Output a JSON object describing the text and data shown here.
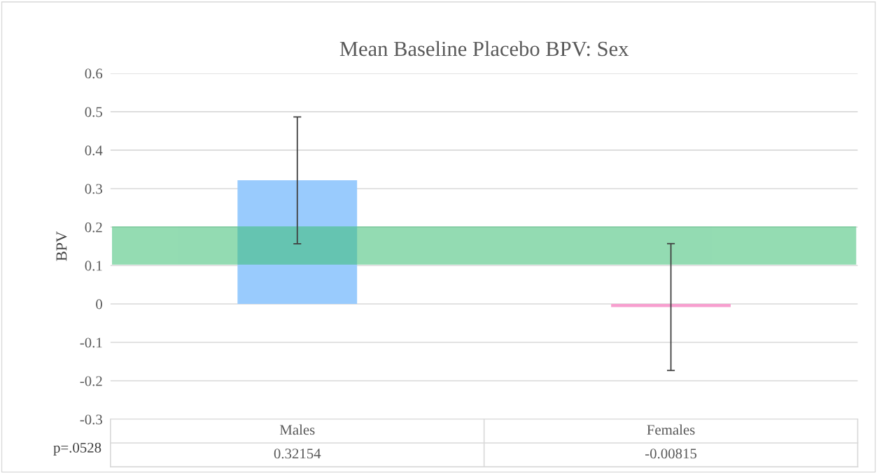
{
  "chart_data": {
    "type": "bar",
    "title": "Mean Baseline Placebo BPV: Sex",
    "ylabel": "BPV",
    "categories": [
      "Males",
      "Females"
    ],
    "values": [
      0.32154,
      -0.00815
    ],
    "colors": [
      "#99cbfd",
      "#f79fcf"
    ],
    "errors": [
      0.165,
      0.165
    ],
    "data_labels": true,
    "ylim": [
      -0.3,
      0.6
    ],
    "yticks": [
      -0.3,
      -0.2,
      -0.1,
      0,
      0.1,
      0.2,
      0.3,
      0.4,
      0.5,
      0.6
    ],
    "grid": "y",
    "bands": [
      {
        "axis": "y",
        "from": 0.104,
        "to": 0.2,
        "color": "#3cbf74"
      }
    ],
    "annotations": [
      "p=.0528"
    ]
  }
}
